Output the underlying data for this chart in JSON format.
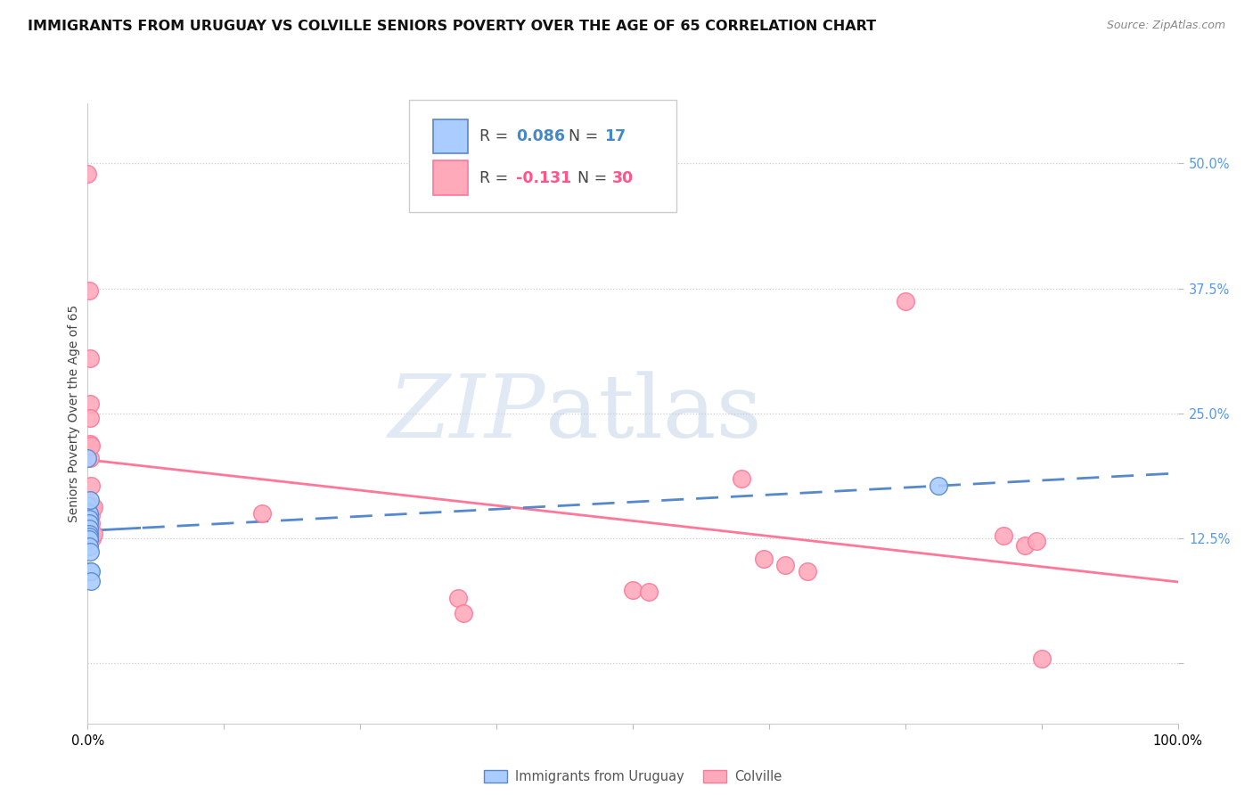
{
  "title": "IMMIGRANTS FROM URUGUAY VS COLVILLE SENIORS POVERTY OVER THE AGE OF 65 CORRELATION CHART",
  "source": "Source: ZipAtlas.com",
  "ylabel": "Seniors Poverty Over the Age of 65",
  "y_ticks": [
    0.0,
    0.125,
    0.25,
    0.375,
    0.5
  ],
  "y_tick_labels": [
    "",
    "12.5%",
    "25.0%",
    "37.5%",
    "50.0%"
  ],
  "x_ticks": [
    0.0,
    0.125,
    0.25,
    0.375,
    0.5,
    0.625,
    0.75,
    0.875,
    1.0
  ],
  "xlim": [
    0.0,
    1.0
  ],
  "ylim": [
    -0.06,
    0.56
  ],
  "background_color": "#ffffff",
  "watermark_zip": "ZIP",
  "watermark_atlas": "atlas",
  "uruguay_scatter": [
    [
      0.0,
      0.205
    ],
    [
      0.0,
      0.158
    ],
    [
      0.0,
      0.152
    ],
    [
      0.001,
      0.15
    ],
    [
      0.001,
      0.145
    ],
    [
      0.001,
      0.14
    ],
    [
      0.001,
      0.135
    ],
    [
      0.001,
      0.13
    ],
    [
      0.001,
      0.127
    ],
    [
      0.001,
      0.124
    ],
    [
      0.001,
      0.117
    ],
    [
      0.002,
      0.163
    ],
    [
      0.002,
      0.112
    ],
    [
      0.002,
      0.092
    ],
    [
      0.003,
      0.092
    ],
    [
      0.003,
      0.082
    ],
    [
      0.78,
      0.178
    ]
  ],
  "colville_scatter": [
    [
      0.0,
      0.49
    ],
    [
      0.001,
      0.373
    ],
    [
      0.002,
      0.305
    ],
    [
      0.002,
      0.26
    ],
    [
      0.002,
      0.245
    ],
    [
      0.002,
      0.22
    ],
    [
      0.002,
      0.205
    ],
    [
      0.003,
      0.218
    ],
    [
      0.003,
      0.178
    ],
    [
      0.003,
      0.158
    ],
    [
      0.003,
      0.148
    ],
    [
      0.003,
      0.14
    ],
    [
      0.003,
      0.128
    ],
    [
      0.004,
      0.156
    ],
    [
      0.004,
      0.125
    ],
    [
      0.005,
      0.156
    ],
    [
      0.005,
      0.13
    ],
    [
      0.16,
      0.15
    ],
    [
      0.34,
      0.065
    ],
    [
      0.345,
      0.05
    ],
    [
      0.5,
      0.073
    ],
    [
      0.515,
      0.072
    ],
    [
      0.6,
      0.185
    ],
    [
      0.62,
      0.105
    ],
    [
      0.64,
      0.098
    ],
    [
      0.66,
      0.092
    ],
    [
      0.75,
      0.362
    ],
    [
      0.84,
      0.128
    ],
    [
      0.86,
      0.118
    ],
    [
      0.87,
      0.122
    ],
    [
      0.875,
      0.005
    ]
  ],
  "uruguay_line_color": "#5588cc",
  "colville_line_color": "#ff7799",
  "uruguay_dot_facecolor": "#aaccff",
  "colville_dot_facecolor": "#ffaabb",
  "tick_label_color": "#5599ee",
  "title_fontsize": 11.5,
  "source_fontsize": 9,
  "axis_label_fontsize": 10,
  "tick_fontsize": 10.5,
  "legend_fontsize": 12.5
}
